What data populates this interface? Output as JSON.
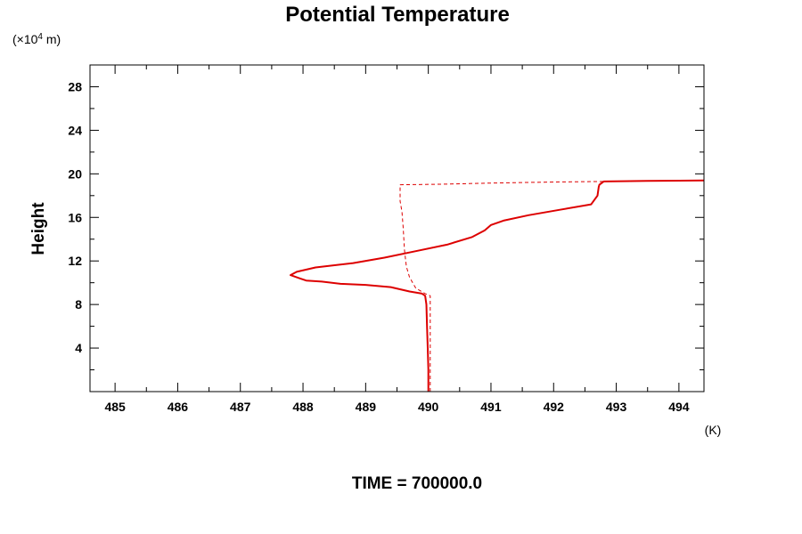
{
  "chart_data": {
    "type": "line",
    "title": "Potential Temperature",
    "ylabel": "Height",
    "y_unit_prefix": "(×10",
    "y_unit_exp": "4",
    "y_unit_suffix": " m)",
    "x_unit": "(K)",
    "footer": "TIME = 700000.0",
    "xlim": [
      484.6,
      494.4
    ],
    "ylim": [
      0,
      30
    ],
    "x_ticks": [
      "485",
      "486",
      "487",
      "488",
      "489",
      "490",
      "491",
      "492",
      "493",
      "494"
    ],
    "y_ticks": [
      "4",
      "8",
      "12",
      "16",
      "20",
      "24",
      "28"
    ],
    "grid": false,
    "series": [
      {
        "style": "solid",
        "color": "#dd0000",
        "x": [
          490.0,
          490.0,
          489.99,
          489.98,
          489.97,
          489.95,
          489.9,
          489.7,
          489.4,
          489.0,
          488.6,
          488.3,
          488.05,
          487.95,
          487.8,
          487.9,
          488.2,
          488.8,
          489.3,
          489.8,
          490.3,
          490.7,
          490.9,
          491.0,
          491.2,
          491.6,
          492.1,
          492.6,
          492.7,
          492.72,
          492.73,
          492.8,
          493.5,
          494.4
        ],
        "y": [
          0,
          2,
          4,
          6,
          8,
          8.8,
          9.0,
          9.2,
          9.6,
          9.8,
          9.9,
          10.1,
          10.2,
          10.4,
          10.7,
          11.0,
          11.4,
          11.8,
          12.3,
          12.9,
          13.5,
          14.2,
          14.8,
          15.3,
          15.7,
          16.2,
          16.7,
          17.2,
          18.0,
          18.8,
          19.0,
          19.3,
          19.35,
          19.4
        ]
      },
      {
        "style": "dashed",
        "color": "#dd0000",
        "x": [
          490.03,
          490.03,
          490.03,
          490.03,
          489.95,
          489.8,
          489.7,
          489.65,
          489.62,
          489.6,
          489.58,
          489.55,
          489.55,
          489.55,
          490.2,
          491.0,
          492.0,
          492.8,
          494.4
        ],
        "y": [
          0,
          4,
          8,
          8.8,
          9.0,
          9.5,
          10.5,
          11.5,
          13.0,
          15.0,
          16.5,
          17.5,
          18.5,
          19.0,
          19.05,
          19.15,
          19.25,
          19.3,
          19.4
        ]
      }
    ]
  }
}
